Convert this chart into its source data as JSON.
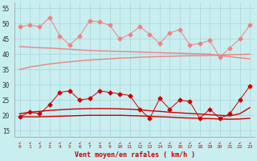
{
  "x": [
    0,
    1,
    2,
    3,
    4,
    5,
    6,
    7,
    8,
    9,
    10,
    11,
    12,
    13,
    14,
    15,
    16,
    17,
    18,
    19,
    20,
    21,
    22,
    23
  ],
  "rafales_zigzag": [
    49.0,
    49.5,
    49.0,
    52.0,
    46.0,
    43.0,
    46.0,
    51.0,
    50.5,
    49.5,
    45.0,
    46.5,
    49.0,
    46.5,
    43.5,
    47.0,
    48.0,
    43.0,
    43.5,
    44.5,
    39.0,
    42.0,
    45.0,
    49.5
  ],
  "rafales_trend1": [
    42.5,
    42.3,
    42.1,
    42.0,
    41.8,
    41.6,
    41.4,
    41.2,
    41.1,
    41.0,
    40.9,
    40.8,
    40.7,
    40.6,
    40.5,
    40.4,
    40.3,
    40.2,
    40.1,
    40.0,
    39.5,
    39.2,
    38.8,
    38.5
  ],
  "rafales_trend2": [
    35.0,
    35.8,
    36.3,
    36.8,
    37.2,
    37.5,
    37.8,
    38.1,
    38.3,
    38.5,
    38.7,
    38.8,
    39.0,
    39.1,
    39.2,
    39.3,
    39.4,
    39.5,
    39.5,
    39.6,
    39.7,
    39.8,
    39.9,
    40.0
  ],
  "moyen_zigzag": [
    19.5,
    21.0,
    20.5,
    23.5,
    27.5,
    28.0,
    25.0,
    25.5,
    28.0,
    27.5,
    27.0,
    26.5,
    22.0,
    19.0,
    25.5,
    22.0,
    25.0,
    24.5,
    19.0,
    22.0,
    19.0,
    20.5,
    25.0,
    29.5
  ],
  "moyen_trend1": [
    20.5,
    21.0,
    21.3,
    21.6,
    21.8,
    22.0,
    22.1,
    22.2,
    22.2,
    22.2,
    22.1,
    22.0,
    21.8,
    21.5,
    21.3,
    21.0,
    20.8,
    20.6,
    20.4,
    20.2,
    20.0,
    19.8,
    20.5,
    22.5
  ],
  "moyen_trend2": [
    19.5,
    19.5,
    19.5,
    19.6,
    19.7,
    19.8,
    19.9,
    20.0,
    20.0,
    20.0,
    20.0,
    19.9,
    19.8,
    19.7,
    19.5,
    19.4,
    19.2,
    19.1,
    19.0,
    18.9,
    18.8,
    18.7,
    18.8,
    19.0
  ],
  "ylim": [
    13,
    57
  ],
  "yticks": [
    15,
    20,
    25,
    30,
    35,
    40,
    45,
    50,
    55
  ],
  "xlabel": "Vent moyen/en rafales ( km/h )",
  "bg_color": "#c8eef0",
  "grid_color": "#b0d8dc",
  "color_light": "#f08080",
  "color_dark": "#cc0000",
  "marker_size": 2.5,
  "lw_zigzag": 0.7,
  "lw_trend": 1.0
}
